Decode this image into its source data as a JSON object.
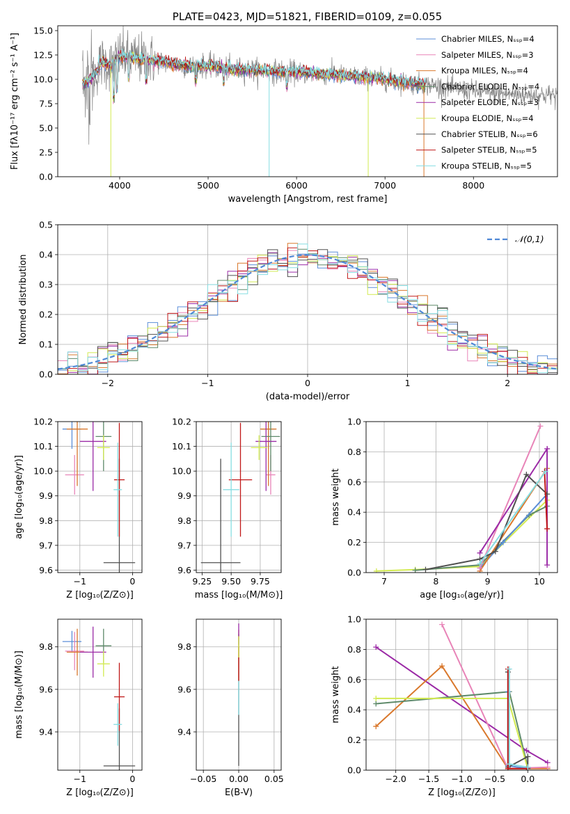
{
  "title": "PLATE=0423, MJD=51821, FIBERID=0109, z=0.055",
  "colors": {
    "chabrier_miles": "#5b8ed8",
    "salpeter_miles": "#e884b8",
    "kroupa_miles": "#d9782c",
    "chabrier_elodie": "#5e8a6a",
    "salpeter_elodie": "#9b2aa6",
    "kroupa_elodie": "#d2ea50",
    "chabrier_stelib": "#505050",
    "salpeter_stelib": "#c01818",
    "kroupa_stelib": "#86dde2",
    "data": "#808080",
    "normal": "#4f88d6"
  },
  "chart_data": [
    {
      "id": "spectrum",
      "type": "line",
      "title": "PLATE=0423, MJD=51821, FIBERID=0109, z=0.055",
      "xlabel": "wavelength [Angstrom, rest frame]",
      "ylabel": "Flux [fλ10⁻¹⁷ erg cm⁻² s⁻¹ A⁻¹]",
      "xlim": [
        3300,
        8950
      ],
      "ylim": [
        0,
        15.5
      ],
      "xticks": [
        4000,
        5000,
        6000,
        7000,
        8000
      ],
      "yticks": [
        0.0,
        2.5,
        5.0,
        7.5,
        10.0,
        12.5,
        15.0
      ],
      "legend_position": "top-right",
      "legend": [
        "Chabrier MILES, Nₛₛₚ=4",
        "Salpeter MILES, Nₛₛₚ=3",
        "Kroupa MILES, Nₛₛₚ=4",
        "Chabrier ELODIE, Nₛₛₚ=4",
        "Salpeter ELODIE, Nₛₛₚ=3",
        "Kroupa ELODIE, Nₛₛₚ=4",
        "Chabrier STELIB, Nₛₛₚ=6",
        "Salpeter STELIB, Nₛₛₚ=5",
        "Kroupa STELIB, Nₛₛₚ=5"
      ],
      "data_range_x": [
        3580,
        8950
      ],
      "model_anchor_x": [
        3600,
        3700,
        3800,
        3900,
        4000,
        4200,
        4400,
        4600,
        4800,
        5000,
        5200,
        5400,
        5600,
        5800,
        6000,
        6200,
        6400,
        6600,
        6800,
        7000,
        7200,
        7400,
        7600,
        7800,
        8000,
        8200,
        8400,
        8600
      ],
      "model_anchor_y": [
        9.5,
        10.2,
        11.8,
        11.4,
        12.4,
        12.1,
        11.9,
        11.6,
        11.3,
        11.4,
        11.1,
        11.0,
        10.9,
        10.8,
        10.7,
        10.6,
        10.5,
        10.3,
        10.2,
        10.0,
        9.7,
        9.5,
        9.3,
        9.0,
        8.8,
        8.6,
        8.5,
        8.4
      ]
    },
    {
      "id": "residuals",
      "type": "histogram",
      "xlabel": "(data-model)/error",
      "ylabel": "Normed distribution",
      "xlim": [
        -2.5,
        2.5
      ],
      "ylim": [
        0,
        0.5
      ],
      "xticks": [
        -2,
        -1,
        0,
        1,
        2
      ],
      "yticks": [
        0.0,
        0.1,
        0.2,
        0.3,
        0.4,
        0.5
      ],
      "bin_width": 0.1,
      "reference_label": "𝒩(0,1)",
      "legend_position": "top-right"
    },
    {
      "id": "age_vs_Z",
      "type": "scatter",
      "xlabel": "Z [log₁₀(Z/Z⊙)]",
      "ylabel": "age  [log₁₀(age/yr)]",
      "xlim": [
        -1.42,
        0.18
      ],
      "ylim": [
        9.59,
        10.2
      ],
      "xticks": [
        -1,
        0
      ],
      "yticks": [
        9.6,
        9.7,
        9.8,
        9.9,
        10.0,
        10.1,
        10.2
      ],
      "points": [
        {
          "model": "chabrier_miles",
          "x": -1.15,
          "y": 10.17,
          "xerr": 0.18,
          "yerr": 0.08
        },
        {
          "model": "salpeter_miles",
          "x": -1.1,
          "y": 9.985,
          "xerr": 0.18,
          "yerr": 0.08
        },
        {
          "model": "kroupa_miles",
          "x": -1.05,
          "y": 10.17,
          "xerr": 0.2,
          "yerr": 0.23
        },
        {
          "model": "chabrier_elodie",
          "x": -0.55,
          "y": 10.14,
          "xerr": 0.15,
          "yerr": 0.14
        },
        {
          "model": "salpeter_elodie",
          "x": -0.75,
          "y": 10.12,
          "xerr": 0.25,
          "yerr": 0.2
        },
        {
          "model": "kroupa_elodie",
          "x": -0.55,
          "y": 10.095,
          "xerr": 0.12,
          "yerr": 0.05
        },
        {
          "model": "chabrier_stelib",
          "x": -0.25,
          "y": 9.63,
          "xerr": 0.3,
          "yerr": 0.42
        },
        {
          "model": "salpeter_stelib",
          "x": -0.25,
          "y": 9.965,
          "xerr": 0.1,
          "yerr": 0.23
        },
        {
          "model": "kroupa_stelib",
          "x": -0.28,
          "y": 9.925,
          "xerr": 0.08,
          "yerr": 0.19
        }
      ]
    },
    {
      "id": "age_vs_mass",
      "type": "scatter",
      "xlabel": "mass [log₁₀(M/M⊙)]",
      "ylabel": "",
      "xlim": [
        9.2,
        9.93
      ],
      "ylim": [
        9.59,
        10.2
      ],
      "xticks": [
        9.25,
        9.5,
        9.75
      ],
      "yticks": [
        9.6,
        9.7,
        9.8,
        9.9,
        10.0,
        10.1,
        10.2
      ],
      "points": [
        {
          "model": "chabrier_miles",
          "x": 9.82,
          "y": 10.17,
          "xerr": 0.06,
          "yerr": 0.08
        },
        {
          "model": "salpeter_miles",
          "x": 9.84,
          "y": 9.985,
          "xerr": 0.04,
          "yerr": 0.08
        },
        {
          "model": "kroupa_miles",
          "x": 9.82,
          "y": 10.17,
          "xerr": 0.07,
          "yerr": 0.23
        },
        {
          "model": "chabrier_elodie",
          "x": 9.84,
          "y": 10.14,
          "xerr": 0.08,
          "yerr": 0.14
        },
        {
          "model": "salpeter_elodie",
          "x": 9.8,
          "y": 10.12,
          "xerr": 0.09,
          "yerr": 0.2
        },
        {
          "model": "kroupa_elodie",
          "x": 9.74,
          "y": 10.095,
          "xerr": 0.07,
          "yerr": 0.05
        },
        {
          "model": "chabrier_stelib",
          "x": 9.41,
          "y": 9.63,
          "xerr": 0.17,
          "yerr": 0.42
        },
        {
          "model": "salpeter_stelib",
          "x": 9.58,
          "y": 9.965,
          "xerr": 0.1,
          "yerr": 0.23
        },
        {
          "model": "kroupa_stelib",
          "x": 9.5,
          "y": 9.925,
          "xerr": 0.07,
          "yerr": 0.19
        }
      ]
    },
    {
      "id": "massweight_vs_age",
      "type": "line",
      "xlabel": "age  [log₁₀(age/yr)]",
      "ylabel": "mass weight",
      "xlim": [
        6.65,
        10.35
      ],
      "ylim": [
        0,
        1.0
      ],
      "xticks": [
        7,
        8,
        9,
        10
      ],
      "yticks": [
        0.0,
        0.2,
        0.4,
        0.6,
        0.8,
        1.0
      ],
      "series": [
        {
          "model": "kroupa_elodie",
          "x": [
            6.85,
            7.6,
            8.85,
            10.15
          ],
          "y": [
            0.01,
            0.02,
            0.04,
            0.48
          ]
        },
        {
          "model": "chabrier_elodie",
          "x": [
            7.6,
            8.85,
            9.8,
            10.15
          ],
          "y": [
            0.015,
            0.05,
            0.38,
            0.44
          ]
        },
        {
          "model": "chabrier_miles",
          "x": [
            8.85,
            9.3,
            10.15
          ],
          "y": [
            0.03,
            0.2,
            0.52
          ]
        },
        {
          "model": "kroupa_miles",
          "x": [
            8.85,
            10.15
          ],
          "y": [
            0.01,
            0.69
          ]
        },
        {
          "model": "salpeter_miles",
          "x": [
            8.85,
            10.02
          ],
          "y": [
            0.03,
            0.97
          ]
        },
        {
          "model": "salpeter_elodie",
          "x": [
            8.85,
            10.15,
            10.15
          ],
          "y": [
            0.13,
            0.82,
            0.05
          ]
        },
        {
          "model": "chabrier_stelib",
          "x": [
            7.8,
            8.85,
            9.15,
            9.75,
            10.15
          ],
          "y": [
            0.02,
            0.09,
            0.14,
            0.65,
            0.52
          ]
        },
        {
          "model": "salpeter_stelib",
          "x": [
            10.1,
            10.15
          ],
          "y": [
            0.67,
            0.29
          ]
        },
        {
          "model": "kroupa_stelib",
          "x": [
            8.85,
            10.12
          ],
          "y": [
            0.06,
            0.67
          ]
        }
      ]
    },
    {
      "id": "mass_vs_Z",
      "type": "scatter",
      "xlabel": "Z [log₁₀(Z/Z⊙)]",
      "ylabel": "mass [log₁₀(M/M⊙)]",
      "xlim": [
        -1.42,
        0.18
      ],
      "ylim": [
        9.22,
        9.93
      ],
      "xticks": [
        -1,
        0
      ],
      "yticks": [
        9.4,
        9.6,
        9.8
      ],
      "points": [
        {
          "model": "chabrier_miles",
          "x": -1.15,
          "y": 9.825,
          "xerr": 0.18,
          "yerr": 0.05
        },
        {
          "model": "salpeter_miles",
          "x": -1.1,
          "y": 9.78,
          "xerr": 0.18,
          "yerr": 0.09
        },
        {
          "model": "kroupa_miles",
          "x": -1.05,
          "y": 9.775,
          "xerr": 0.2,
          "yerr": 0.11
        },
        {
          "model": "chabrier_elodie",
          "x": -0.55,
          "y": 9.805,
          "xerr": 0.15,
          "yerr": 0.08
        },
        {
          "model": "salpeter_elodie",
          "x": -0.75,
          "y": 9.775,
          "xerr": 0.25,
          "yerr": 0.12
        },
        {
          "model": "kroupa_elodie",
          "x": -0.55,
          "y": 9.72,
          "xerr": 0.12,
          "yerr": 0.06
        },
        {
          "model": "chabrier_stelib",
          "x": -0.25,
          "y": 9.24,
          "xerr": 0.3,
          "yerr": 0.27
        },
        {
          "model": "salpeter_stelib",
          "x": -0.25,
          "y": 9.565,
          "xerr": 0.1,
          "yerr": 0.16
        },
        {
          "model": "kroupa_stelib",
          "x": -0.28,
          "y": 9.435,
          "xerr": 0.08,
          "yerr": 0.1
        }
      ]
    },
    {
      "id": "ebv",
      "type": "scatter",
      "xlabel": "E(B-V)",
      "ylabel": "",
      "xlim": [
        -0.06,
        0.06
      ],
      "ylim": [
        9.22,
        9.93
      ],
      "xticks": [
        -0.05,
        0.0,
        0.05
      ],
      "xtick_labels": [
        "−0.05",
        "0.00",
        "0.05"
      ],
      "yticks": [
        9.4,
        9.6,
        9.8
      ],
      "points": [
        {
          "model": "chabrier_stelib",
          "x": 0.0,
          "y": 9.55,
          "yerr": 0.31
        },
        {
          "model": "kroupa_miles",
          "x": 0.0,
          "y": 9.76,
          "yerr": 0.12
        },
        {
          "model": "salpeter_stelib",
          "x": 0.0,
          "y": 9.72,
          "yerr": 0.08
        },
        {
          "model": "salpeter_elodie",
          "x": 0.0,
          "y": 9.86,
          "yerr": 0.05
        },
        {
          "model": "kroupa_elodie",
          "x": 0.0,
          "y": 9.8,
          "yerr": 0.05
        },
        {
          "model": "kroupa_stelib",
          "x": 0.0,
          "y": 9.56,
          "yerr": 0.08
        }
      ]
    },
    {
      "id": "massweight_vs_Z",
      "type": "line",
      "xlabel": "Z [log₁₀(Z/Z⊙)]",
      "ylabel": "mass weight",
      "xlim": [
        -2.45,
        0.45
      ],
      "ylim": [
        0,
        1.0
      ],
      "xticks": [
        -2.0,
        -1.5,
        -1.0,
        -0.5,
        0.0
      ],
      "xtick_labels": [
        "−2.0",
        "−1.5",
        "−1.0",
        "−0.5",
        "0.0"
      ],
      "yticks": [
        0.0,
        0.2,
        0.4,
        0.6,
        0.8,
        1.0
      ],
      "series": [
        {
          "model": "salpeter_elodie",
          "x": [
            -2.3,
            -0.02,
            0.3
          ],
          "y": [
            0.815,
            0.13,
            0.05
          ]
        },
        {
          "model": "kroupa_miles",
          "x": [
            -2.3,
            -1.3,
            -0.3,
            0.3
          ],
          "y": [
            0.29,
            0.69,
            0.01,
            0.01
          ]
        },
        {
          "model": "salpeter_miles",
          "x": [
            -1.3,
            -0.3,
            0.3
          ],
          "y": [
            0.965,
            0.01,
            0.02
          ]
        },
        {
          "model": "chabrier_elodie",
          "x": [
            -2.3,
            -0.28,
            0.0
          ],
          "y": [
            0.44,
            0.52,
            0.02
          ]
        },
        {
          "model": "kroupa_elodie",
          "x": [
            -2.3,
            -0.3,
            0.0
          ],
          "y": [
            0.475,
            0.475,
            0.01
          ]
        },
        {
          "model": "chabrier_miles",
          "x": [
            -0.3,
            -0.3,
            0.0
          ],
          "y": [
            0.52,
            0.03,
            0.01
          ]
        },
        {
          "model": "chabrier_stelib",
          "x": [
            -0.3,
            -0.3,
            0.0,
            0.0
          ],
          "y": [
            0.65,
            0.02,
            0.09,
            0.01
          ]
        },
        {
          "model": "salpeter_stelib",
          "x": [
            -0.3,
            -0.3,
            -0.02
          ],
          "y": [
            0.67,
            0.01,
            0.01
          ]
        },
        {
          "model": "kroupa_stelib",
          "x": [
            -0.28,
            -0.28,
            0.0
          ],
          "y": [
            0.67,
            0.04,
            0.02
          ]
        }
      ]
    }
  ]
}
